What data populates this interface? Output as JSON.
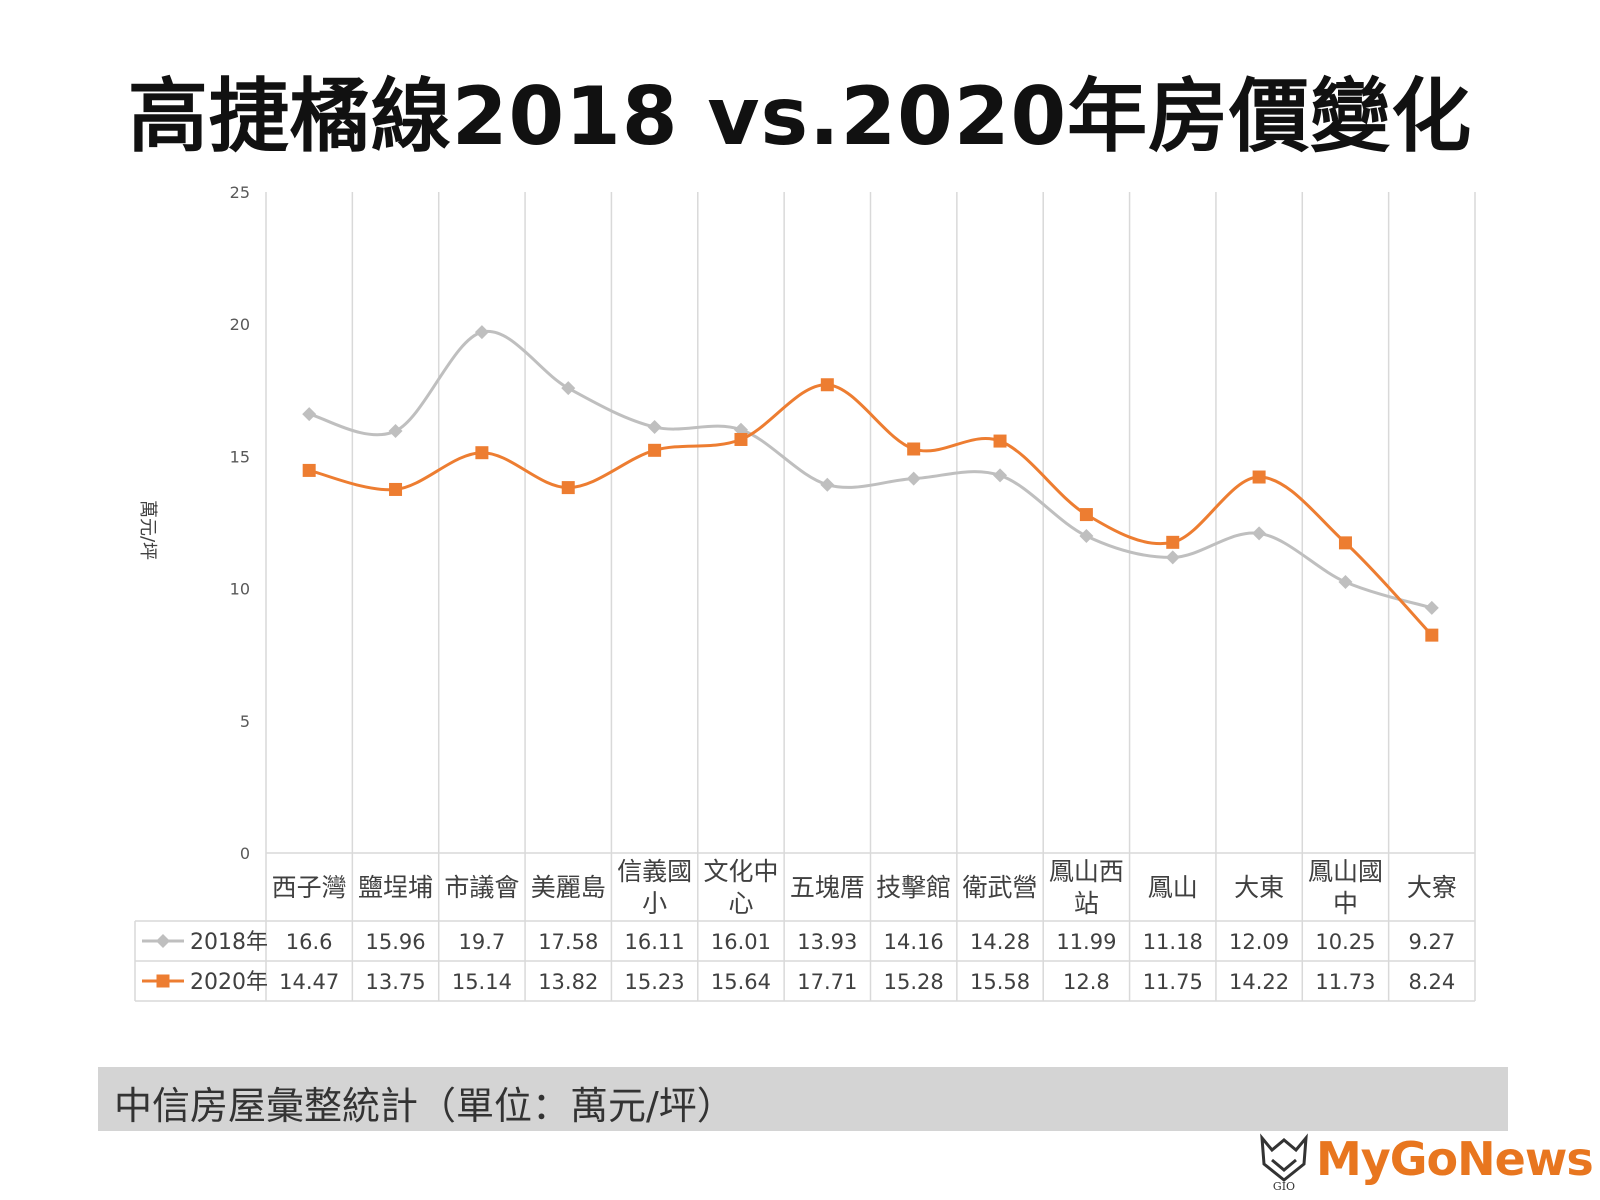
{
  "title": "高捷橘線2018 vs.2020年房價變化",
  "source_note": "中信房屋彙整統計（單位：萬元/坪）",
  "brand": "MyGoNews",
  "brand_emblem_text": "GIO",
  "colors": {
    "series_2018": "#bfbfbf",
    "series_2020": "#ed7d31",
    "grid": "#d9d9d9",
    "brand": "#e8761f"
  },
  "chart_data": {
    "type": "line",
    "ylabel": "萬元/坪",
    "ylim": [
      0,
      25
    ],
    "yticks": [
      0,
      5,
      10,
      15,
      20,
      25
    ],
    "grid": "vertical",
    "smooth": true,
    "legend": "data-table",
    "categories": [
      [
        "西子灣"
      ],
      [
        "鹽埕埔"
      ],
      [
        "市議會"
      ],
      [
        "美麗島"
      ],
      [
        "信義國",
        "小"
      ],
      [
        "文化中",
        "心"
      ],
      [
        "五塊厝"
      ],
      [
        "技擊館"
      ],
      [
        "衛武營"
      ],
      [
        "鳳山西",
        "站"
      ],
      [
        "鳳山"
      ],
      [
        "大東"
      ],
      [
        "鳳山國",
        "中"
      ],
      [
        "大寮"
      ]
    ],
    "series": [
      {
        "name": "2018年",
        "marker": "diamond",
        "color": "#bfbfbf",
        "values": [
          16.6,
          15.96,
          19.7,
          17.58,
          16.11,
          16.01,
          13.93,
          14.16,
          14.28,
          11.99,
          11.18,
          12.09,
          10.25,
          9.27
        ]
      },
      {
        "name": "2020年",
        "marker": "square",
        "color": "#ed7d31",
        "values": [
          14.47,
          13.75,
          15.14,
          13.82,
          15.23,
          15.64,
          17.71,
          15.28,
          15.58,
          12.8,
          11.75,
          14.22,
          11.73,
          8.24
        ]
      }
    ]
  }
}
